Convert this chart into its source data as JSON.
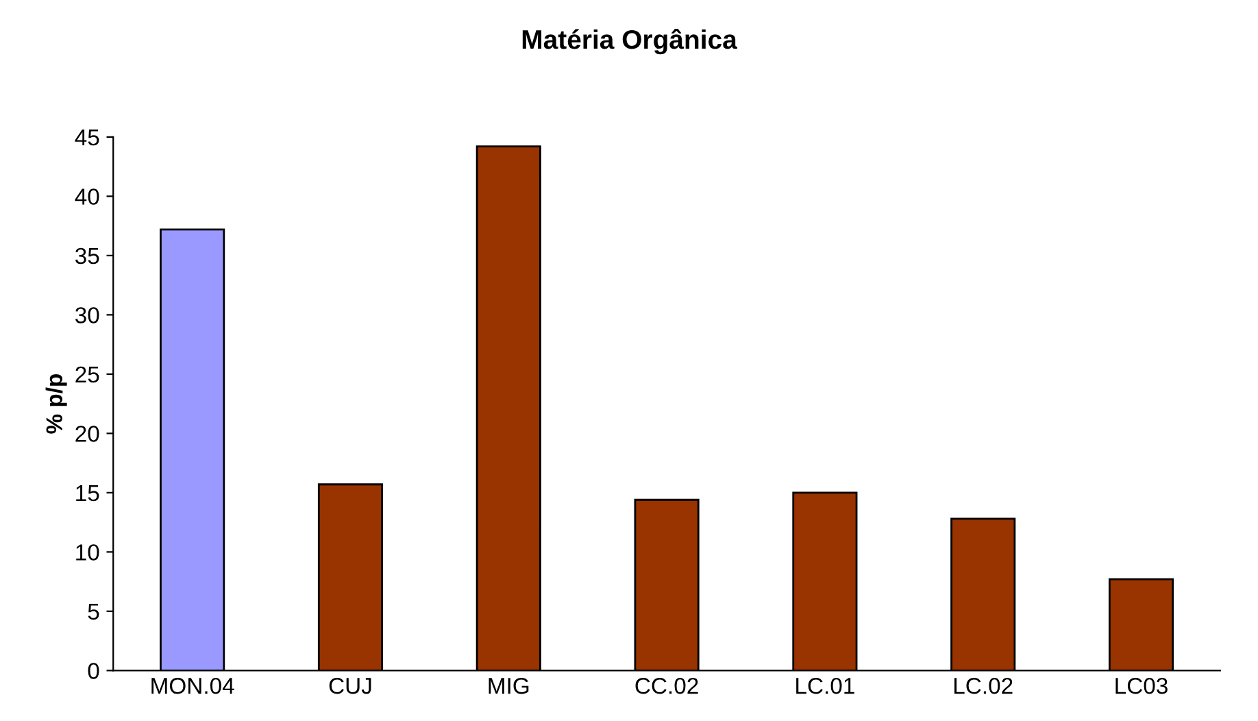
{
  "chart_data": {
    "type": "bar",
    "title": "Matéria Orgânica",
    "ylabel": "% p/p",
    "categories": [
      "MON.04",
      "CUJ",
      "MIG",
      "CC.02",
      "LC.01",
      "LC.02",
      "LC03"
    ],
    "values": [
      37.2,
      15.7,
      44.2,
      14.4,
      15.0,
      12.8,
      7.7
    ],
    "colors": [
      "#9999ff",
      "#993300",
      "#993300",
      "#993300",
      "#993300",
      "#993300",
      "#993300"
    ],
    "ylim": [
      0,
      45
    ],
    "yticks": [
      0,
      5,
      10,
      15,
      20,
      25,
      30,
      35,
      40,
      45
    ],
    "grid": false,
    "legend": false
  }
}
